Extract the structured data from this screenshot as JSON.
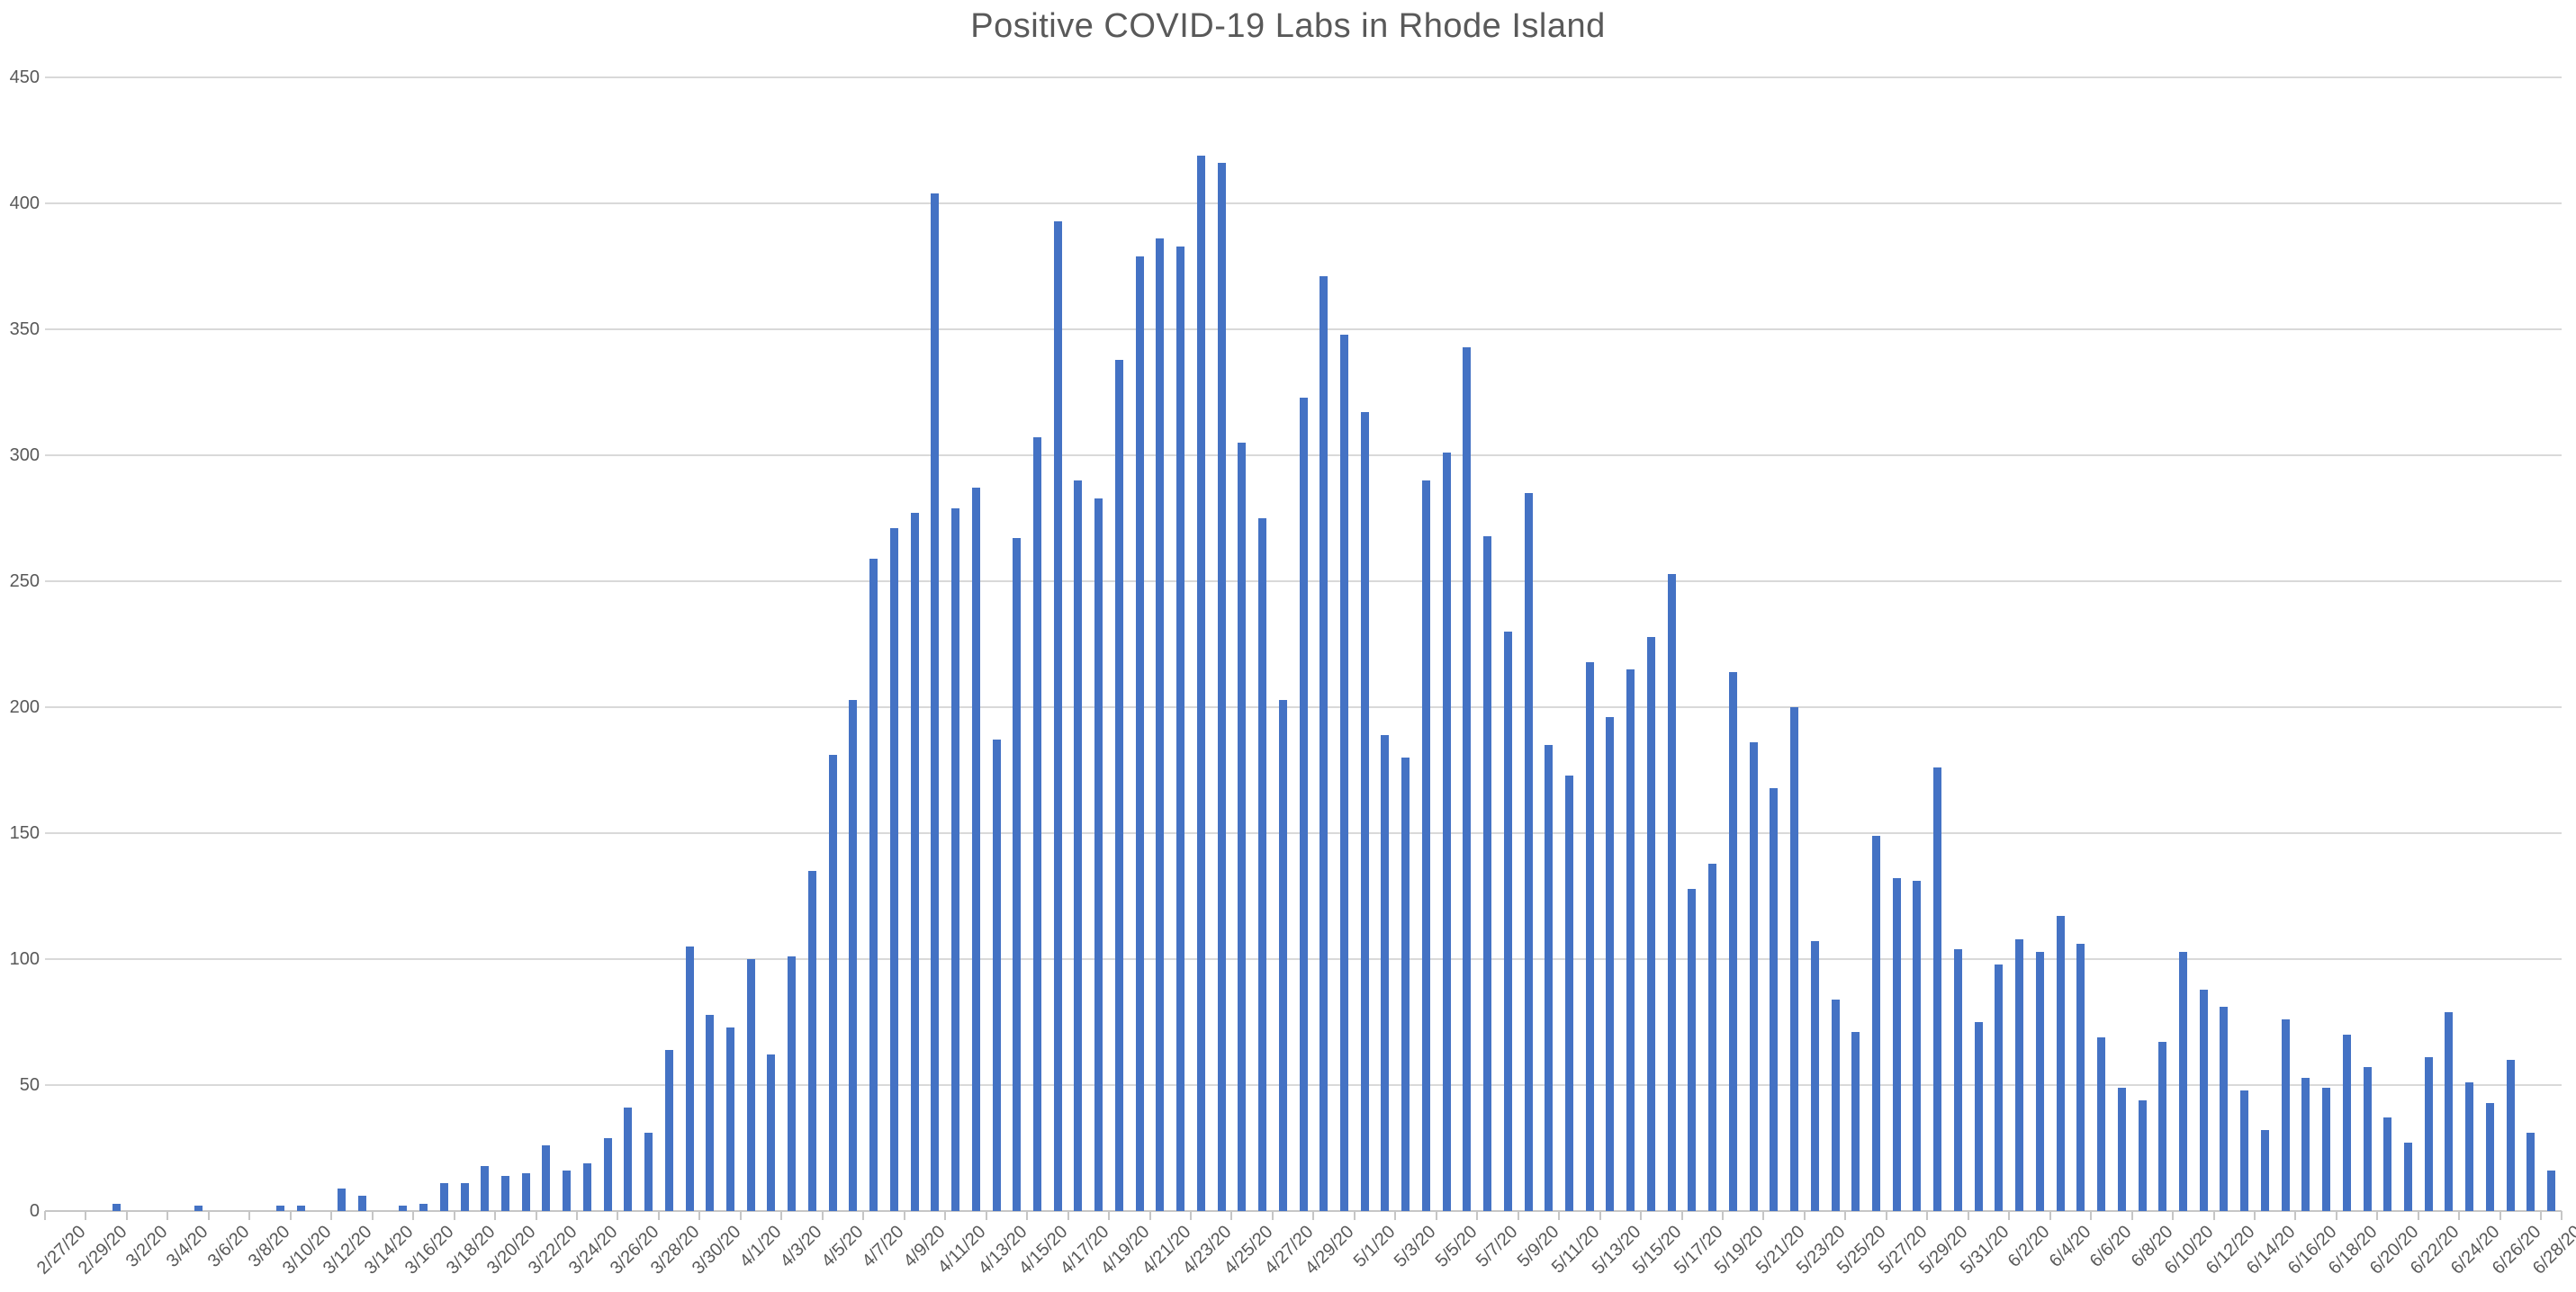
{
  "chart_data": {
    "type": "bar",
    "title": "Positive COVID-19 Labs in Rhode Island",
    "xlabel": "",
    "ylabel": "",
    "ylim": [
      0,
      450
    ],
    "ytick_step": 50,
    "xtick_label_every": 2,
    "grid": true,
    "legend_position": "none",
    "bar_color": "#4472C4",
    "gridline_color": "#D9D9D9",
    "axis_color": "#C6C6C6",
    "text_color": "#595959",
    "title_color": "#595959",
    "categories": [
      "2/27/20",
      "2/28/20",
      "2/29/20",
      "3/1/20",
      "3/2/20",
      "3/3/20",
      "3/4/20",
      "3/5/20",
      "3/6/20",
      "3/7/20",
      "3/8/20",
      "3/9/20",
      "3/10/20",
      "3/11/20",
      "3/12/20",
      "3/13/20",
      "3/14/20",
      "3/15/20",
      "3/16/20",
      "3/17/20",
      "3/18/20",
      "3/19/20",
      "3/20/20",
      "3/21/20",
      "3/22/20",
      "3/23/20",
      "3/24/20",
      "3/25/20",
      "3/26/20",
      "3/27/20",
      "3/28/20",
      "3/29/20",
      "3/30/20",
      "3/31/20",
      "4/1/20",
      "4/2/20",
      "4/3/20",
      "4/4/20",
      "4/5/20",
      "4/6/20",
      "4/7/20",
      "4/8/20",
      "4/9/20",
      "4/10/20",
      "4/11/20",
      "4/12/20",
      "4/13/20",
      "4/14/20",
      "4/15/20",
      "4/16/20",
      "4/17/20",
      "4/18/20",
      "4/19/20",
      "4/20/20",
      "4/21/20",
      "4/22/20",
      "4/23/20",
      "4/24/20",
      "4/25/20",
      "4/26/20",
      "4/27/20",
      "4/28/20",
      "4/29/20",
      "4/30/20",
      "5/1/20",
      "5/2/20",
      "5/3/20",
      "5/4/20",
      "5/5/20",
      "5/6/20",
      "5/7/20",
      "5/8/20",
      "5/9/20",
      "5/10/20",
      "5/11/20",
      "5/12/20",
      "5/13/20",
      "5/14/20",
      "5/15/20",
      "5/16/20",
      "5/17/20",
      "5/18/20",
      "5/19/20",
      "5/20/20",
      "5/21/20",
      "5/22/20",
      "5/23/20",
      "5/24/20",
      "5/25/20",
      "5/26/20",
      "5/27/20",
      "5/28/20",
      "5/29/20",
      "5/30/20",
      "5/31/20",
      "6/1/20",
      "6/2/20",
      "6/3/20",
      "6/4/20",
      "6/5/20",
      "6/6/20",
      "6/7/20",
      "6/8/20",
      "6/9/20",
      "6/10/20",
      "6/11/20",
      "6/12/20",
      "6/13/20",
      "6/14/20",
      "6/15/20",
      "6/16/20",
      "6/17/20",
      "6/18/20",
      "6/19/20",
      "6/20/20",
      "6/21/20",
      "6/22/20",
      "6/23/20",
      "6/24/20",
      "6/25/20",
      "6/26/20",
      "6/27/20",
      "6/28/20"
    ],
    "values": [
      0,
      0,
      0,
      3,
      0,
      0,
      0,
      2,
      0,
      0,
      0,
      2,
      2,
      0,
      9,
      6,
      0,
      2,
      3,
      11,
      11,
      18,
      14,
      15,
      26,
      16,
      19,
      29,
      41,
      31,
      64,
      105,
      78,
      73,
      100,
      62,
      101,
      135,
      181,
      203,
      259,
      271,
      277,
      404,
      279,
      287,
      187,
      267,
      307,
      393,
      290,
      283,
      338,
      379,
      386,
      383,
      419,
      416,
      305,
      275,
      203,
      323,
      371,
      348,
      317,
      189,
      180,
      290,
      301,
      343,
      268,
      230,
      285,
      185,
      173,
      218,
      196,
      215,
      228,
      253,
      128,
      138,
      214,
      186,
      168,
      200,
      107,
      84,
      71,
      149,
      132,
      131,
      176,
      104,
      75,
      98,
      108,
      103,
      117,
      106,
      69,
      49,
      44,
      67,
      103,
      88,
      81,
      48,
      32,
      76,
      53,
      49,
      70,
      57,
      37,
      27,
      61,
      79,
      51,
      43,
      60,
      31,
      16
    ]
  }
}
